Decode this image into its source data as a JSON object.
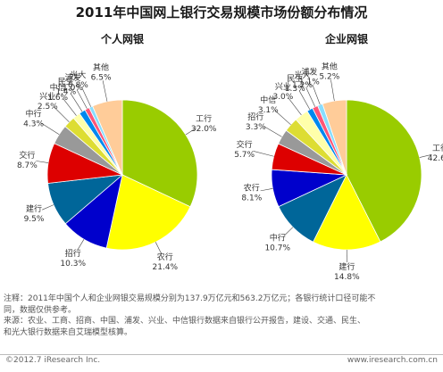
{
  "title": "2011年中国网上银行交易规模市场份额分布情况",
  "chart_data": [
    {
      "type": "pie",
      "title": "个人网银",
      "unit": "%",
      "slices": [
        {
          "label": "工行",
          "value": 32.0,
          "display": "32.0%",
          "color": "#99cc00"
        },
        {
          "label": "农行",
          "value": 21.4,
          "display": "21.4%",
          "color": "#ffff00"
        },
        {
          "label": "招行",
          "value": 10.3,
          "display": "10.3%",
          "color": "#0000cc"
        },
        {
          "label": "建行",
          "value": 9.5,
          "display": "9.5%",
          "color": "#006699"
        },
        {
          "label": "交行",
          "value": 8.7,
          "display": "8.7%",
          "color": "#dd0000"
        },
        {
          "label": "中行",
          "value": 4.3,
          "display": "4.3%",
          "color": "#999999"
        },
        {
          "label": "兴业",
          "value": 2.5,
          "display": "2.5%",
          "color": "#dddd33"
        },
        {
          "label": "中信",
          "value": 1.6,
          "display": "1.6%",
          "color": "#ffffaa"
        },
        {
          "label": "民生",
          "value": 1.4,
          "display": "1.4%",
          "color": "#0088ee"
        },
        {
          "label": "浦发",
          "value": 1.0,
          "display": "1.0%",
          "color": "#ff5577"
        },
        {
          "label": "光大",
          "value": 0.8,
          "display": "0.8%",
          "color": "#88ddff"
        },
        {
          "label": "其他",
          "value": 6.5,
          "display": "6.5%",
          "color": "#ffcc99"
        }
      ]
    },
    {
      "type": "pie",
      "title": "企业网银",
      "unit": "%",
      "slices": [
        {
          "label": "工行",
          "value": 42.6,
          "display": "42.6%",
          "color": "#99cc00"
        },
        {
          "label": "建行",
          "value": 14.8,
          "display": "14.8%",
          "color": "#ffff00"
        },
        {
          "label": "中行",
          "value": 10.7,
          "display": "10.7%",
          "color": "#006699"
        },
        {
          "label": "农行",
          "value": 8.1,
          "display": "8.1%",
          "color": "#0000cc"
        },
        {
          "label": "交行",
          "value": 5.7,
          "display": "5.7%",
          "color": "#dd0000"
        },
        {
          "label": "招行",
          "value": 3.3,
          "display": "3.3%",
          "color": "#999999"
        },
        {
          "label": "中信",
          "value": 3.1,
          "display": "3.1%",
          "color": "#dddd33"
        },
        {
          "label": "兴业",
          "value": 3.0,
          "display": "3.0%",
          "color": "#ffffaa"
        },
        {
          "label": "民生",
          "value": 1.3,
          "display": "1.3%",
          "color": "#0088ee"
        },
        {
          "label": "光大",
          "value": 1.2,
          "display": "1.2%",
          "color": "#ff5577"
        },
        {
          "label": "浦发",
          "value": 1.1,
          "display": "1.1%",
          "color": "#88ddff"
        },
        {
          "label": "其他",
          "value": 5.2,
          "display": "5.2%",
          "color": "#ffcc99"
        }
      ]
    }
  ],
  "notes": [
    "注释：2011年中国个人和企业网银交易规模分别为137.9万亿元和563.2万亿元；各银行统计口径可能不",
    "同，数据仅供参考。",
    "来源：农业、工商、招商、中国、浦发、兴业、中信银行数据来自银行公开报告，建设、交通、民生、",
    "和光大银行数据来自艾瑞模型核算。"
  ],
  "footer": {
    "copyright": "©2012.7 iResearch Inc.",
    "site": "www.iresearch.com.cn"
  }
}
